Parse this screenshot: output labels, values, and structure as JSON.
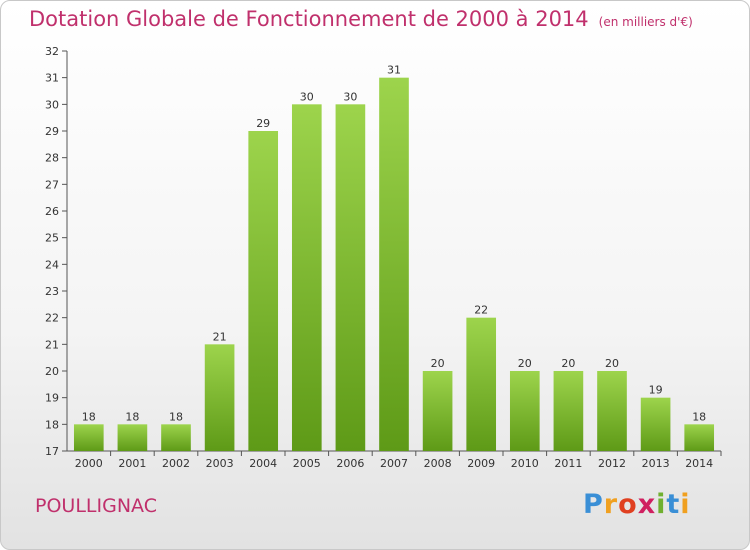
{
  "chart_data": {
    "type": "bar",
    "title": "Dotation Globale de Fonctionnement de 2000 à 2014",
    "subtitle": "(en milliers d'€)",
    "xlabel": "",
    "ylabel": "",
    "categories": [
      "2000",
      "2001",
      "2002",
      "2003",
      "2004",
      "2005",
      "2006",
      "2007",
      "2008",
      "2009",
      "2010",
      "2011",
      "2012",
      "2013",
      "2014"
    ],
    "values": [
      18,
      18,
      18,
      21,
      29,
      30,
      30,
      31,
      20,
      22,
      20,
      20,
      20,
      19,
      18
    ],
    "ylim": [
      17,
      32
    ],
    "yticks": [
      17,
      18,
      19,
      20,
      21,
      22,
      23,
      24,
      25,
      26,
      27,
      28,
      29,
      30,
      31,
      32
    ],
    "grid": false,
    "colors": {
      "bar_top": "#9dd44c",
      "bar_bottom": "#5e9a17",
      "title": "#c0306c"
    }
  },
  "footer": {
    "commune": "POULLIGNAC",
    "logo": {
      "letters": [
        "P",
        "r",
        "o",
        "x",
        "i",
        "t",
        "i"
      ],
      "colors": [
        "#3a8fd6",
        "#f0a020",
        "#e04020",
        "#d02060",
        "#70b030",
        "#3a8fd6",
        "#f0a020"
      ]
    }
  }
}
